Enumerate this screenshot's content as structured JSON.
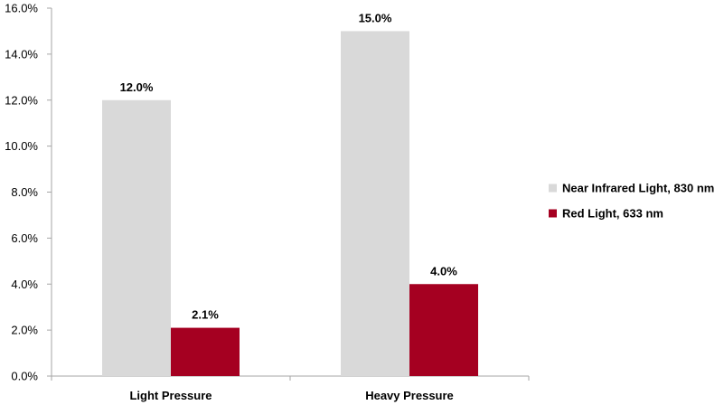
{
  "chart_data": {
    "type": "bar",
    "categories": [
      "Light Pressure",
      "Heavy Pressure"
    ],
    "series": [
      {
        "name": "Near Infrared Light, 830 nm",
        "values": [
          12.0,
          15.0
        ],
        "labels": [
          "12.0%",
          "15.0%"
        ],
        "color": "#d9d9d9"
      },
      {
        "name": "Red Light, 633 nm",
        "values": [
          2.1,
          4.0
        ],
        "labels": [
          "2.1%",
          "4.0%"
        ],
        "color": "#a50021"
      }
    ],
    "yticks": [
      0,
      2,
      4,
      6,
      8,
      10,
      12,
      14,
      16
    ],
    "ytick_labels": [
      "0.0%",
      "2.0%",
      "4.0%",
      "6.0%",
      "8.0%",
      "10.0%",
      "12.0%",
      "14.0%",
      "16.0%"
    ],
    "ylim": [
      0,
      16
    ],
    "grid": false,
    "legend_position": "right",
    "title": "",
    "xlabel": "",
    "ylabel": "",
    "axis_color": "#a6a6a6"
  }
}
